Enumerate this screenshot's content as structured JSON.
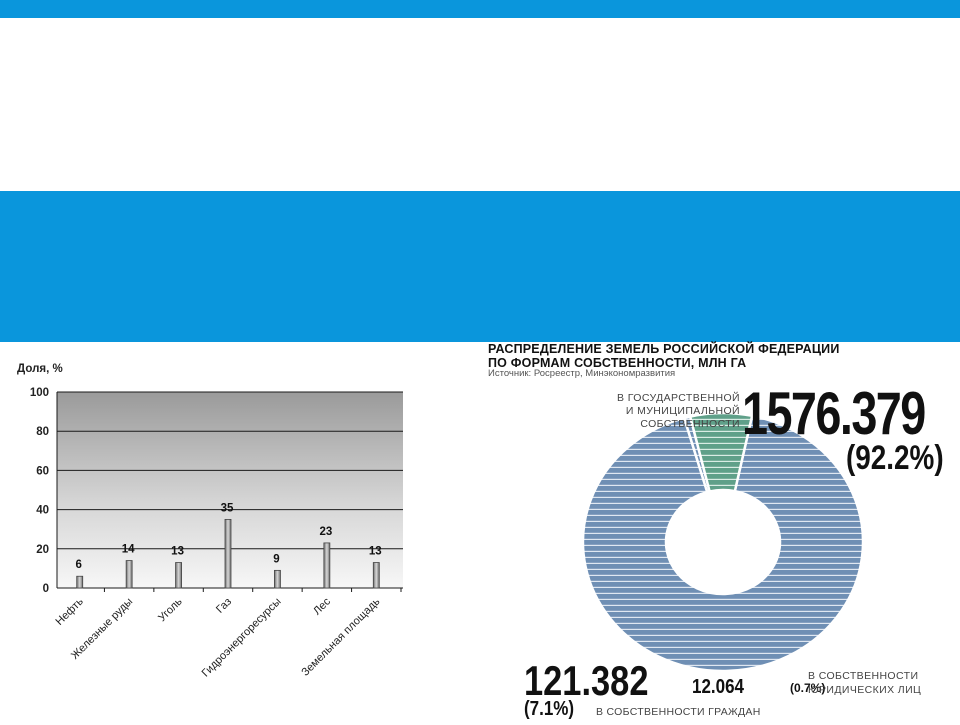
{
  "chart_data": [
    {
      "type": "bar",
      "ylabel": "Доля, %",
      "ylim": [
        0,
        100
      ],
      "yticks": [
        0,
        20,
        40,
        60,
        80,
        100
      ],
      "grid": true,
      "categories": [
        "Нефть",
        "Железные руды",
        "Уголь",
        "Газ",
        "Гидроэнергоресурсы",
        "Лес",
        "Земельная площадь"
      ],
      "values": [
        6,
        14,
        13,
        35,
        9,
        23,
        13
      ]
    },
    {
      "type": "pie",
      "title": "РАСПРЕДЕЛЕНИЕ ЗЕМЕЛЬ РОССИЙСКОЙ ФЕДЕРАЦИИ ПО ФОРМАМ СОБСТВЕННОСТИ, МЛН ГА",
      "title_line1": "РАСПРЕДЕЛЕНИЕ ЗЕМЕЛЬ РОССИЙСКОЙ ФЕДЕРАЦИИ",
      "title_line2": "ПО ФОРМАМ СОБСТВЕННОСТИ, МЛН ГА",
      "source": "Источник: Росреестр, Минэкономразвития",
      "slices": [
        {
          "label_lines": [
            "В ГОСУДАРСТВЕННОЙ",
            "И МУНИЦИПАЛЬНОЙ",
            "СОБСТВЕННОСТИ"
          ],
          "value": 1576.379,
          "value_text": "1576.379",
          "percent_text": "(92.2%)",
          "percent": 92.2,
          "color": "#6f8fb4"
        },
        {
          "label_lines": [
            "В СОБСТВЕННОСТИ",
            "ЮРИДИЧЕСКИХ ЛИЦ"
          ],
          "value": 12.064,
          "value_text": "12.064",
          "percent_text": "(0.7%)",
          "percent": 0.7,
          "color": "#6f8fb4"
        },
        {
          "label_lines": [
            "В СОБСТВЕННОСТИ ГРАЖДАН"
          ],
          "value": 121.382,
          "value_text": "121.382",
          "percent_text": "(7.1%)",
          "percent": 7.1,
          "color": "#5fa089"
        }
      ]
    }
  ]
}
